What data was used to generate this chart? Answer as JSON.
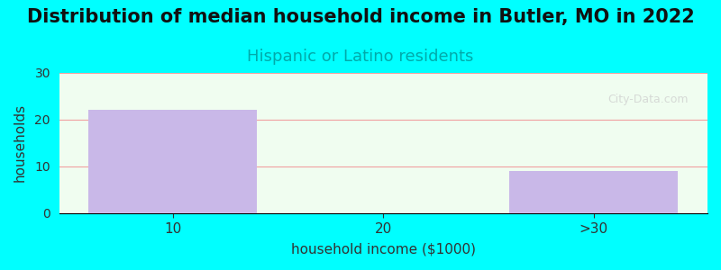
{
  "title": "Distribution of median household income in Butler, MO in 2022",
  "subtitle": "Hispanic or Latino residents",
  "categories": [
    "10",
    "20",
    ">30"
  ],
  "values": [
    22,
    0,
    9
  ],
  "bar_color": "#c9b8e8",
  "bar_edgecolor": "none",
  "xlabel": "household income ($1000)",
  "ylabel": "households",
  "ylim": [
    0,
    30
  ],
  "yticks": [
    0,
    10,
    20,
    30
  ],
  "background_color": "#00FFFF",
  "plot_bg_color": "#f0fdf0",
  "grid_color": "#f0a0a0",
  "title_fontsize": 15,
  "subtitle_color": "#00aaaa",
  "subtitle_fontsize": 13,
  "watermark": "City-Data.com"
}
